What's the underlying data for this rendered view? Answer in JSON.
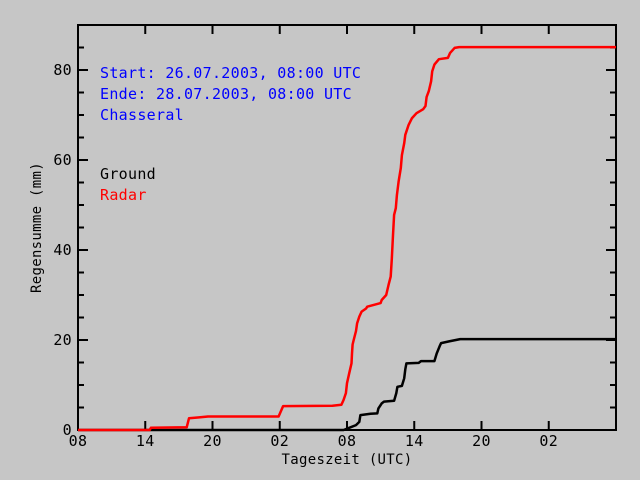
{
  "window": {
    "description": "Cumulative rain sum plot, gray background, no title bar"
  },
  "colors": {
    "background": "#c6c6c6",
    "axis": "#000000",
    "annotation_blue": "#0000ff",
    "radar_red": "#ff0000",
    "ground_black": "#000000"
  },
  "annotations": {
    "start": "Start: 26.07.2003, 08:00 UTC",
    "ende": "Ende: 28.07.2003, 08:00 UTC",
    "station": "Chasseral"
  },
  "chart_data": {
    "type": "line",
    "title": "",
    "xlabel": "Tageszeit (UTC)",
    "ylabel": "Regensumme (mm)",
    "x_unit": "hours after 26.07.2003 08:00 UTC",
    "xlim": [
      0,
      48
    ],
    "ylim": [
      0,
      90
    ],
    "grid": false,
    "legend_position": "inside upper-left, text only",
    "x_ticks": [
      {
        "h": 0,
        "label": "08"
      },
      {
        "h": 6,
        "label": "14"
      },
      {
        "h": 12,
        "label": "20"
      },
      {
        "h": 18,
        "label": "02"
      },
      {
        "h": 24,
        "label": "08"
      },
      {
        "h": 30,
        "label": "14"
      },
      {
        "h": 36,
        "label": "20"
      },
      {
        "h": 42,
        "label": "02"
      },
      {
        "h": 48,
        "label": ""
      }
    ],
    "y_ticks": [
      {
        "v": 0,
        "label": "0"
      },
      {
        "v": 20,
        "label": "20"
      },
      {
        "v": 40,
        "label": "40"
      },
      {
        "v": 60,
        "label": "60"
      },
      {
        "v": 80,
        "label": "80"
      }
    ],
    "y_minor_step": 5,
    "series": [
      {
        "name": "Ground",
        "color": "#000000",
        "points": [
          [
            0,
            0
          ],
          [
            23.7,
            0
          ],
          [
            24.2,
            0.5
          ],
          [
            24.8,
            1.1
          ],
          [
            25.1,
            1.8
          ],
          [
            25.2,
            3.3
          ],
          [
            26.1,
            3.6
          ],
          [
            26.7,
            3.7
          ],
          [
            26.8,
            4.8
          ],
          [
            27.1,
            5.9
          ],
          [
            27.3,
            6.3
          ],
          [
            28.2,
            6.5
          ],
          [
            28.4,
            8.2
          ],
          [
            28.5,
            9.6
          ],
          [
            28.9,
            9.8
          ],
          [
            29.1,
            11.5
          ],
          [
            29.2,
            13.5
          ],
          [
            29.3,
            14.8
          ],
          [
            30.4,
            14.9
          ],
          [
            30.6,
            15.3
          ],
          [
            31.8,
            15.3
          ],
          [
            32.0,
            17.0
          ],
          [
            32.3,
            18.8
          ],
          [
            32.4,
            19.3
          ],
          [
            33.1,
            19.7
          ],
          [
            34.1,
            20.2
          ],
          [
            48,
            20.2
          ]
        ]
      },
      {
        "name": "Radar",
        "color": "#ff0000",
        "points": [
          [
            0,
            0
          ],
          [
            6.4,
            0
          ],
          [
            6.5,
            0.5
          ],
          [
            9.7,
            0.6
          ],
          [
            9.9,
            2.6
          ],
          [
            10.8,
            2.8
          ],
          [
            11.6,
            3.0
          ],
          [
            17.9,
            3.0
          ],
          [
            18.3,
            5.3
          ],
          [
            22.7,
            5.4
          ],
          [
            23.5,
            5.6
          ],
          [
            23.7,
            6.7
          ],
          [
            23.9,
            8.2
          ],
          [
            24.0,
            10.4
          ],
          [
            24.2,
            12.6
          ],
          [
            24.4,
            14.8
          ],
          [
            24.45,
            17.0
          ],
          [
            24.5,
            19.0
          ],
          [
            24.6,
            20.0
          ],
          [
            24.8,
            22.0
          ],
          [
            24.9,
            23.7
          ],
          [
            25.1,
            25.2
          ],
          [
            25.3,
            26.3
          ],
          [
            25.7,
            27.0
          ],
          [
            25.8,
            27.4
          ],
          [
            27.0,
            28.2
          ],
          [
            27.1,
            28.9
          ],
          [
            27.5,
            30.0
          ],
          [
            27.7,
            32.2
          ],
          [
            27.9,
            34.1
          ],
          [
            28.0,
            38.0
          ],
          [
            28.1,
            43.3
          ],
          [
            28.2,
            47.8
          ],
          [
            28.35,
            49.3
          ],
          [
            28.45,
            52.2
          ],
          [
            28.6,
            55.2
          ],
          [
            28.8,
            58.2
          ],
          [
            28.9,
            61.1
          ],
          [
            29.1,
            63.7
          ],
          [
            29.2,
            65.6
          ],
          [
            29.5,
            67.8
          ],
          [
            29.8,
            69.3
          ],
          [
            30.2,
            70.4
          ],
          [
            30.8,
            71.3
          ],
          [
            31.0,
            72.0
          ],
          [
            31.1,
            74.0
          ],
          [
            31.3,
            75.3
          ],
          [
            31.5,
            77.5
          ],
          [
            31.6,
            79.7
          ],
          [
            31.8,
            81.2
          ],
          [
            32.2,
            82.4
          ],
          [
            33.0,
            82.7
          ],
          [
            33.2,
            83.8
          ],
          [
            33.6,
            84.9
          ],
          [
            34.0,
            85.1
          ],
          [
            48,
            85.1
          ]
        ]
      }
    ]
  }
}
